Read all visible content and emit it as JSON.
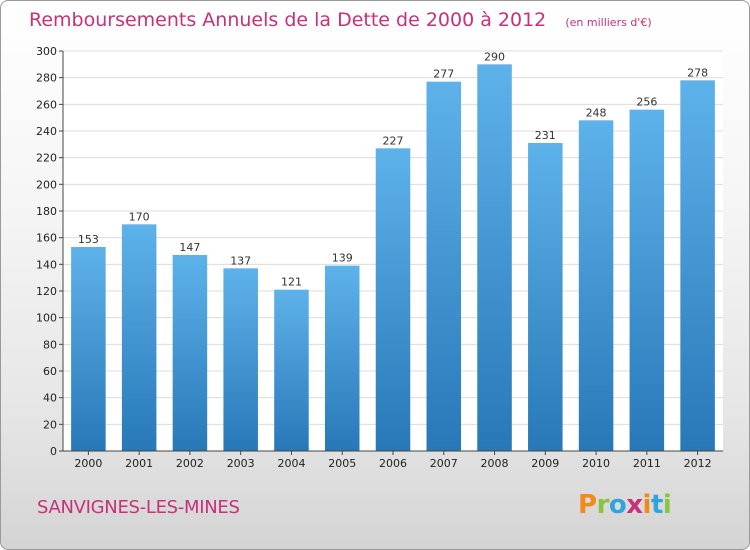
{
  "chart_data": {
    "type": "bar",
    "title": "Remboursements Annuels de la Dette de 2000 à 2012",
    "unit_note": "(en milliers d'€)",
    "xlabel": "",
    "ylabel": "",
    "categories": [
      "2000",
      "2001",
      "2002",
      "2003",
      "2004",
      "2005",
      "2006",
      "2007",
      "2008",
      "2009",
      "2010",
      "2011",
      "2012"
    ],
    "values": [
      153,
      170,
      147,
      137,
      121,
      139,
      227,
      277,
      290,
      231,
      248,
      256,
      278
    ],
    "ylim": [
      0,
      300
    ],
    "yticks": [
      0,
      20,
      40,
      60,
      80,
      100,
      120,
      140,
      160,
      180,
      200,
      220,
      240,
      260,
      280,
      300
    ],
    "grid": true,
    "legend": "none",
    "colors": {
      "bar_top": "#5eb2ea",
      "bar_bottom": "#2878b8",
      "grid": "#dcdcdc",
      "axis": "#444444",
      "title": "#c8307a"
    }
  },
  "footer": {
    "commune": "SANVIGNES-LES-MINES",
    "brand": "Proxiti"
  }
}
